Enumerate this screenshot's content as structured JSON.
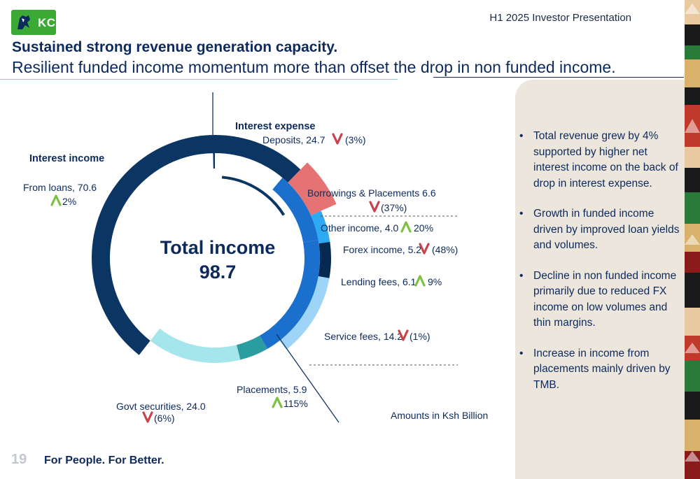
{
  "header": {
    "logo_text": "KCB",
    "presentation_title": "H1 2025 Investor Presentation"
  },
  "title": "Sustained strong revenue generation capacity.",
  "subtitle": "Resilient funded income momentum more than offset the drop in non funded income.",
  "colors": {
    "navy": "#0b3563",
    "deep_navy": "#062a4f",
    "pink": "#e57373",
    "blue": "#1a70cc",
    "light_blue": "#9ed4f8",
    "sky": "#2eaaf5",
    "teal": "#2a9da0",
    "light_teal": "#a5e5ec",
    "green_arrow": "#7dc142",
    "red_arrow": "#c9424a",
    "brand_green": "#3aaa35"
  },
  "chart_data": {
    "type": "pie",
    "center_label": "Total income",
    "center_value": "98.7",
    "units_note": "Amounts in Ksh Billion",
    "groups": [
      {
        "title": "Interest income"
      },
      {
        "title": "Interest expense"
      }
    ],
    "segments": [
      {
        "name": "Deposits",
        "value": 24.7,
        "change": "(3%)",
        "direction": "down",
        "group": "Interest expense"
      },
      {
        "name": "Borrowings & Placements",
        "value": 6.6,
        "change": "(37%)",
        "direction": "down",
        "group": "Interest expense"
      },
      {
        "name": "Other income",
        "value": 4.0,
        "change": "20%",
        "direction": "up"
      },
      {
        "name": "Forex income",
        "value": 5.2,
        "change": "(48%)",
        "direction": "down"
      },
      {
        "name": "Lending fees",
        "value": 6.1,
        "change": "9%",
        "direction": "up"
      },
      {
        "name": "Service fees",
        "value": 14.2,
        "change": "(1%)",
        "direction": "down"
      },
      {
        "name": "Placements",
        "value": 5.9,
        "change": "115%",
        "direction": "up",
        "group": "Interest income"
      },
      {
        "name": "Govt securities",
        "value": 24.0,
        "change": "(6%)",
        "direction": "down",
        "group": "Interest income"
      },
      {
        "name": "From loans",
        "value": 70.6,
        "change": "2%",
        "direction": "up",
        "group": "Interest income"
      }
    ],
    "labels": {
      "deposits": "Deposits,  24.7",
      "borrowings": "Borrowings & Placements  6.6",
      "other": "Other income,  4.0",
      "forex": "Forex income,  5.2",
      "lending": "Lending fees,  6.1",
      "service": "Service fees,  14.2",
      "placements": "Placements,  5.9",
      "govt": "Govt securities,  24.0",
      "loans": "From loans,  70.6"
    }
  },
  "bullets": [
    "Total revenue grew by 4% supported by higher net interest income on the back of drop in interest expense.",
    "Growth in funded income driven by improved loan yields and volumes.",
    "Decline in non funded income primarily due to reduced FX income on low volumes and thin margins.",
    "Increase in income from placements mainly driven by TMB."
  ],
  "footer": {
    "page_number": "19",
    "tagline": "For People. For Better."
  }
}
